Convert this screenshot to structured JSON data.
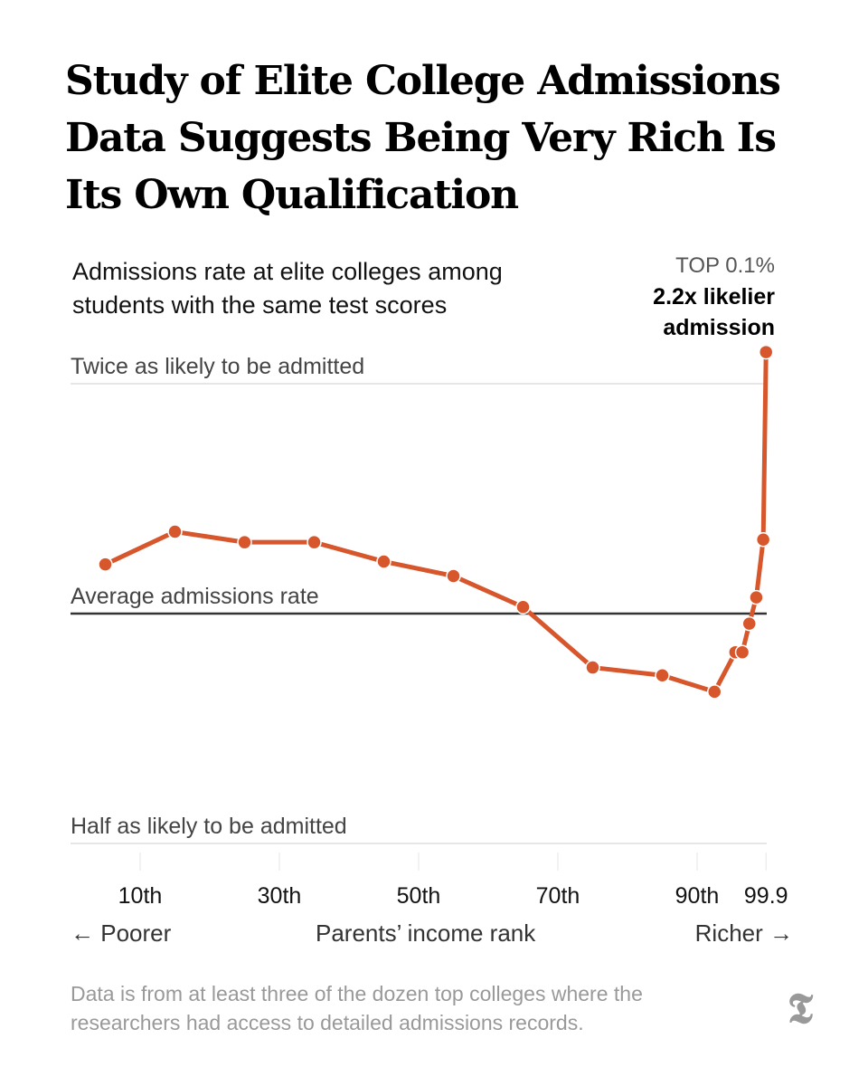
{
  "headline": "Study of Elite College Admissions Data Suggests Being Very Rich Is Its Own Qualification",
  "subtitle": "Admissions rate at elite colleges among students with the same test scores",
  "annotation": {
    "kicker": "TOP 0.1%",
    "line1": "2.2x likelier",
    "line2": "admission"
  },
  "footnote": "Data is from at least three of the dozen top colleges where the researchers had access to detailed admissions records.",
  "logo": "𝕿",
  "colors": {
    "line": "#d7562b",
    "reference": "#333333",
    "grid": "#dddddd"
  },
  "chart_data": {
    "type": "line",
    "xlabel": "Parents’ income rank",
    "x_left_label": "← Poorer",
    "x_right_label": "Richer →",
    "y_scale": "log",
    "ylim": [
      0.5,
      2.0
    ],
    "xlim": [
      0,
      100
    ],
    "reference_lines": [
      {
        "value": 2.0,
        "label": "Twice as likely to be admitted"
      },
      {
        "value": 1.0,
        "label": "Average admissions rate"
      },
      {
        "value": 0.5,
        "label": "Half as likely to be admitted"
      }
    ],
    "x_ticks": [
      {
        "value": 10,
        "label": "10th"
      },
      {
        "value": 30,
        "label": "30th"
      },
      {
        "value": 50,
        "label": "50th"
      },
      {
        "value": 70,
        "label": "70th"
      },
      {
        "value": 90,
        "label": "90th"
      },
      {
        "value": 99.9,
        "label": "99.9"
      }
    ],
    "series": [
      {
        "x": [
          5,
          15,
          25,
          35,
          45,
          55,
          65,
          75,
          85,
          92.5,
          95.5,
          96.5,
          97.5,
          98.5,
          99.5,
          99.9
        ],
        "y": [
          1.16,
          1.28,
          1.24,
          1.24,
          1.17,
          1.12,
          1.02,
          0.85,
          0.83,
          0.79,
          0.89,
          0.89,
          0.97,
          1.05,
          1.25,
          2.2
        ]
      }
    ]
  }
}
